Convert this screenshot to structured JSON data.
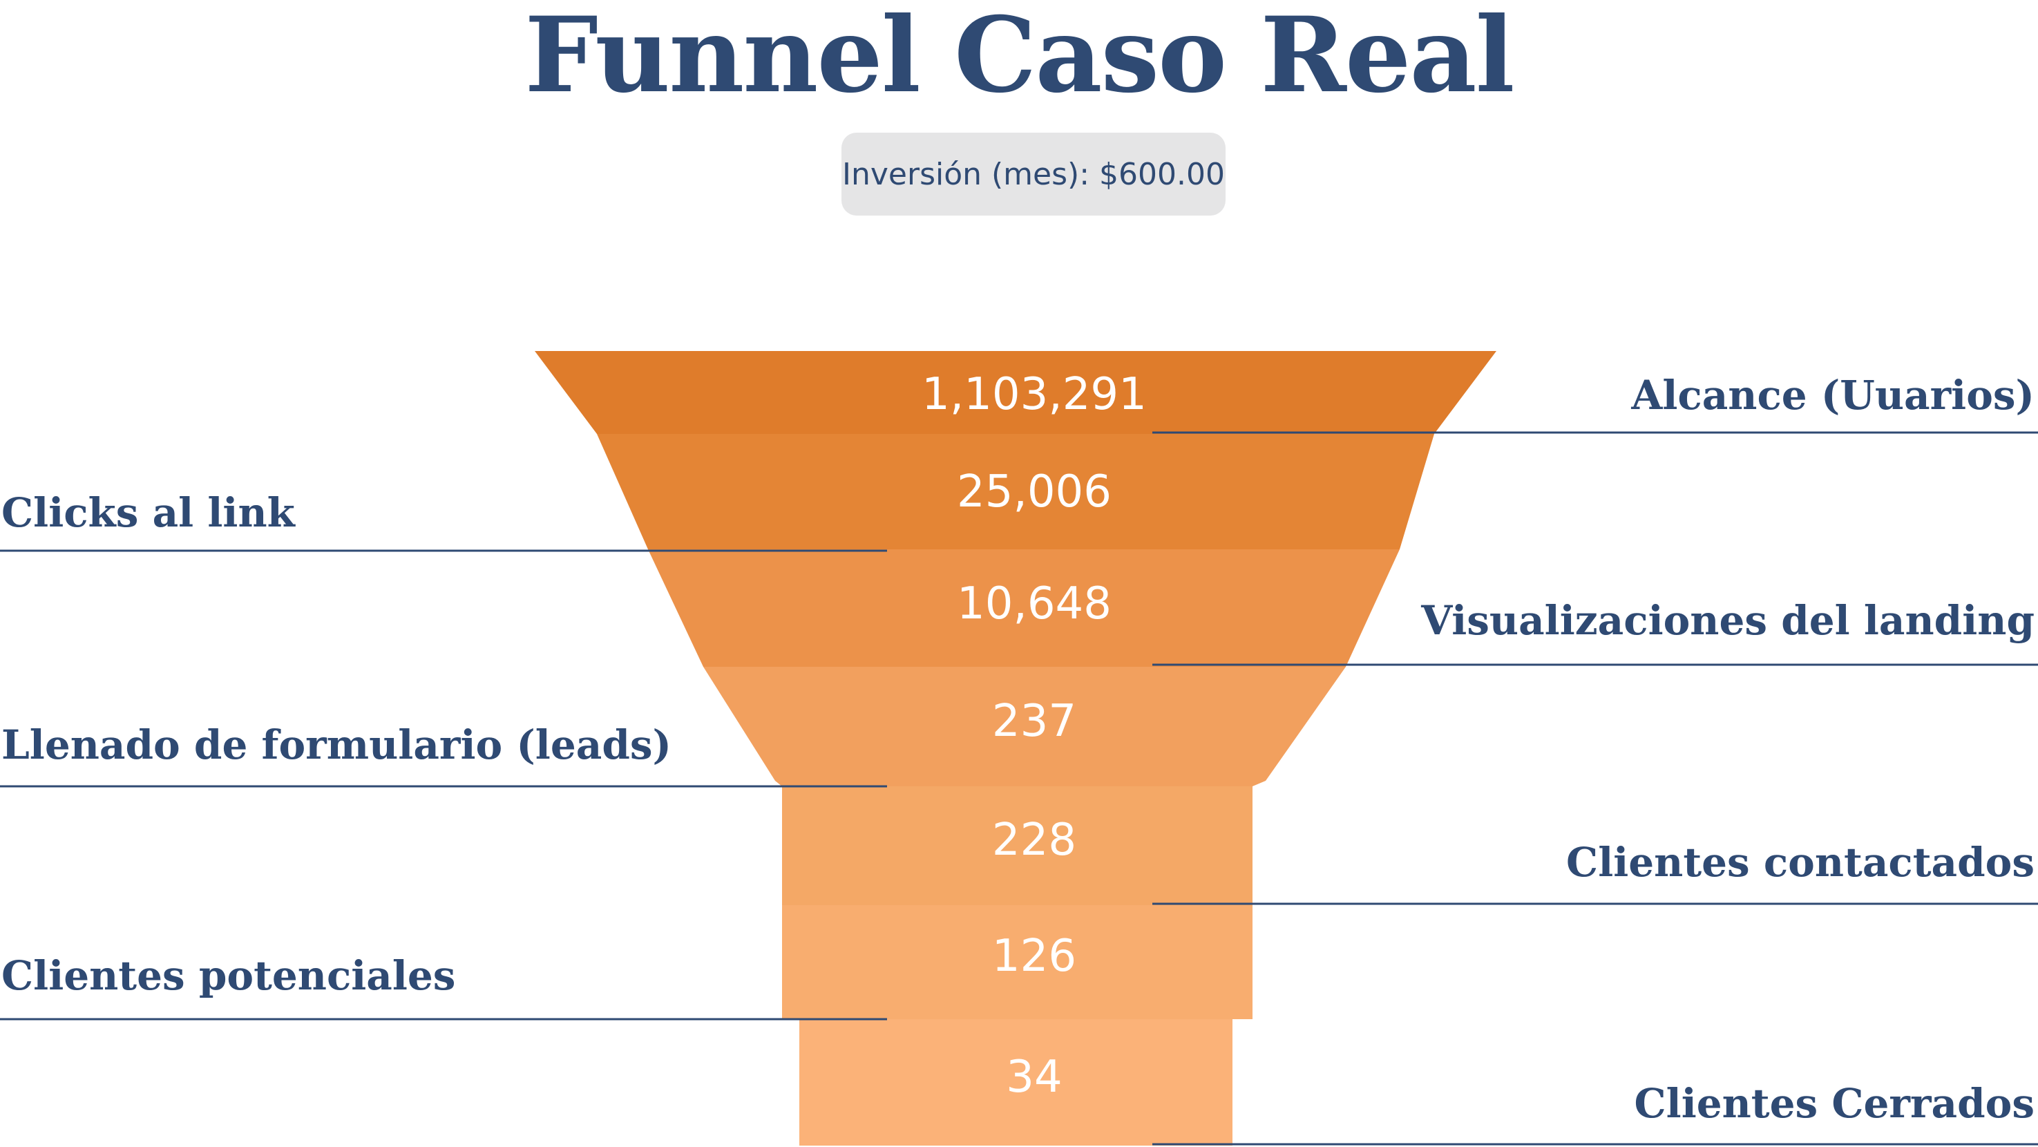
{
  "title": "Funnel Caso Real",
  "badge": "Inversión (mes): $600.00",
  "colors": {
    "title": "#2f4a73",
    "badge_bg": "#e5e5e6",
    "line": "#2f4a73",
    "stages": [
      "#df7c2b",
      "#e48535",
      "#ec924a",
      "#f2a05e",
      "#f4a866",
      "#f8ad6f",
      "#fbb278"
    ]
  },
  "chart_data": {
    "type": "funnel",
    "title": "Funnel Caso Real",
    "stages": [
      {
        "label": "Alcance (Uuarios)",
        "value": 1103291,
        "display": "1,103,291",
        "side": "right"
      },
      {
        "label": "Clicks al link",
        "value": 25006,
        "display": "25,006",
        "side": "left"
      },
      {
        "label": "Visualizaciones del landing",
        "value": 10648,
        "display": "10,648",
        "side": "right"
      },
      {
        "label": "Llenado de formulario (leads)",
        "value": 237,
        "display": "237",
        "side": "left"
      },
      {
        "label": "Clientes contactados",
        "value": 228,
        "display": "228",
        "side": "right"
      },
      {
        "label": "Clientes potenciales",
        "value": 126,
        "display": "126",
        "side": "left"
      },
      {
        "label": "Clientes Cerrados",
        "value": 34,
        "display": "34",
        "side": "right"
      }
    ]
  }
}
